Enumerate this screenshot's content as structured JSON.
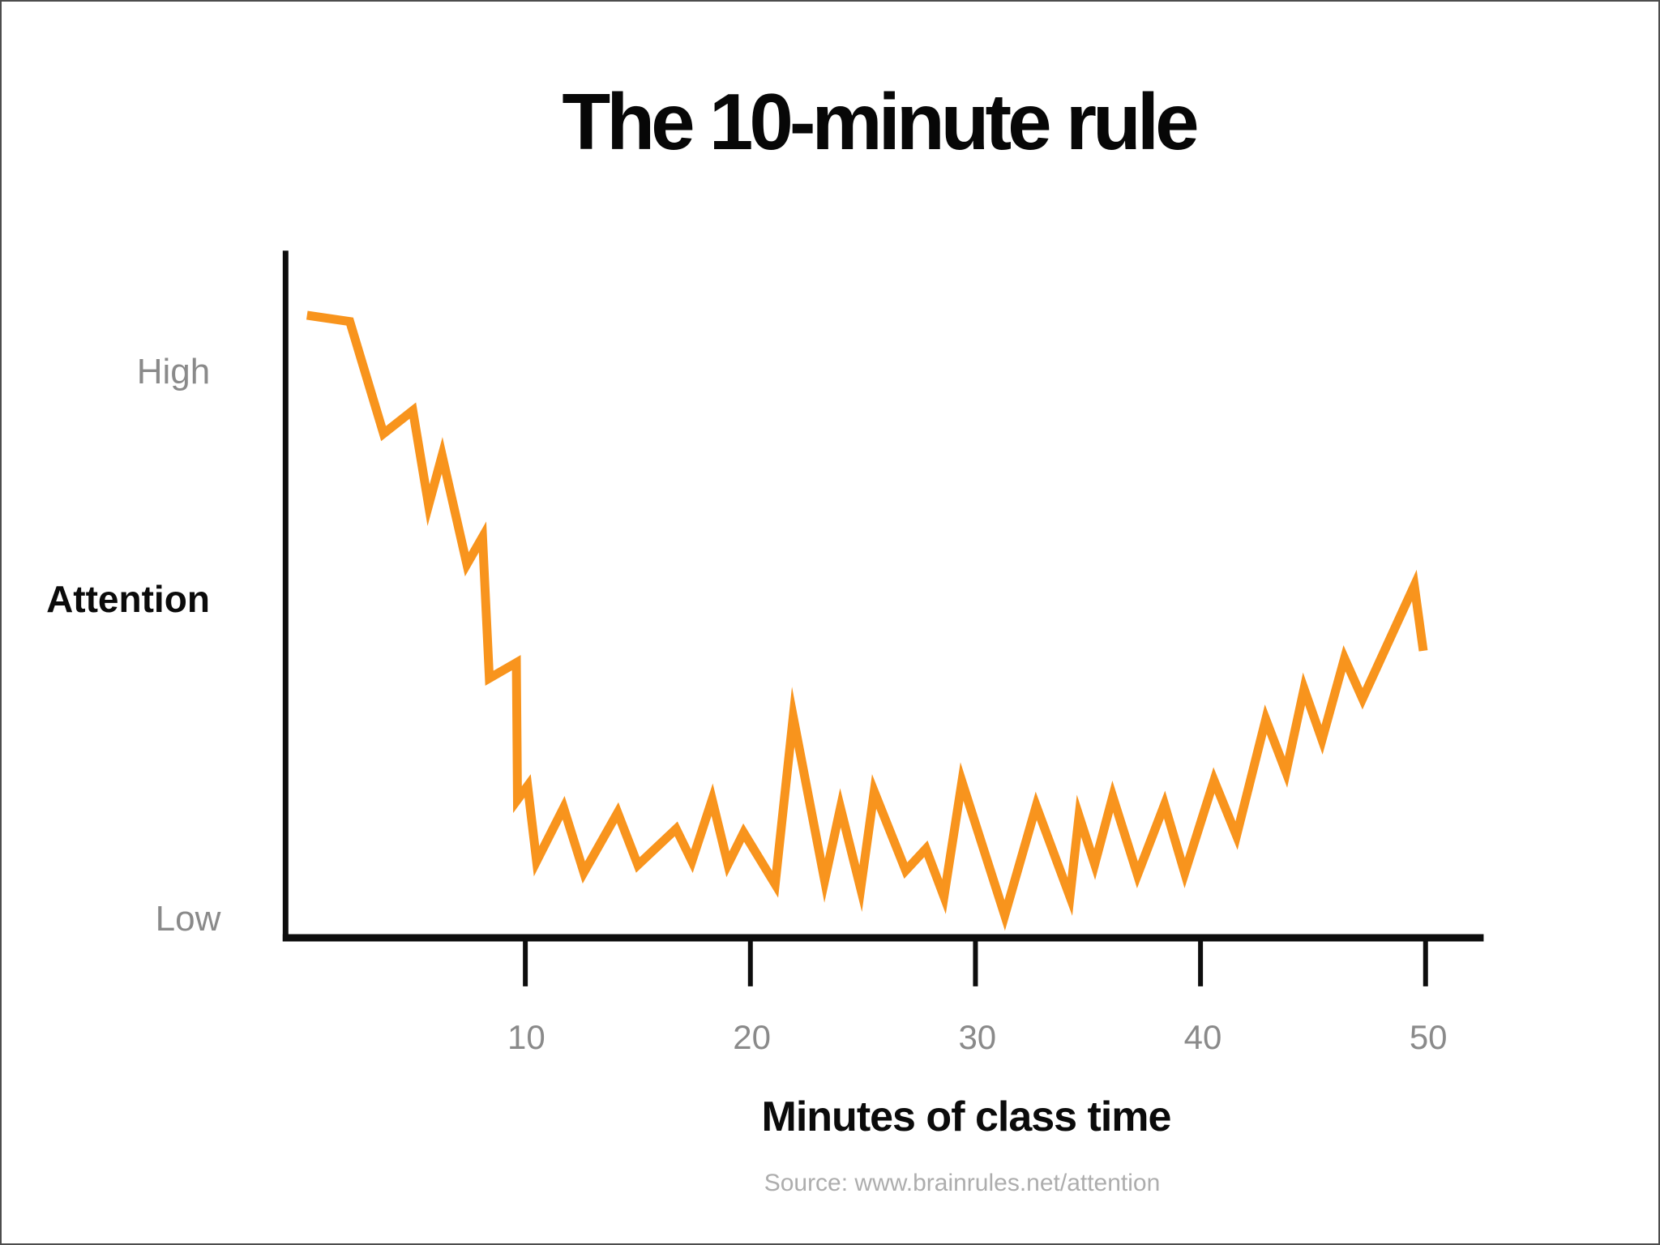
{
  "title": "The 10-minute rule",
  "y_axis": {
    "axis_label": "Attention",
    "top_label": "High",
    "bottom_label": "Low"
  },
  "x_axis": {
    "label": "Minutes of class time",
    "ticks": [
      "10",
      "20",
      "30",
      "40",
      "50"
    ]
  },
  "source": "Source: www.brainrules.net/attention",
  "colors": {
    "line": "#F8941D",
    "axis": "#0d0d0d",
    "muted_label": "#8a8a8a",
    "source_text": "#adadad"
  },
  "chart_data": {
    "type": "line",
    "title": "The 10-minute rule",
    "xlabel": "Minutes of class time",
    "ylabel": "Attention",
    "x_ticks": [
      10,
      20,
      30,
      40,
      50
    ],
    "xlim": [
      0,
      52
    ],
    "y_scale_note": "attention estimated 0-100, 100 = starting level near 'High', 0 = 'Low' baseline",
    "grid": false,
    "legend": "none",
    "series": [
      {
        "name": "Attention",
        "color": "#F8941D",
        "points": [
          [
            0.3,
            100
          ],
          [
            2.2,
            99
          ],
          [
            3.7,
            81
          ],
          [
            5.0,
            84.7
          ],
          [
            5.7,
            69.5
          ],
          [
            6.3,
            77.5
          ],
          [
            7.4,
            60.0
          ],
          [
            8.1,
            64.4
          ],
          [
            8.4,
            41.7
          ],
          [
            9.6,
            44.2
          ],
          [
            9.65,
            22.2
          ],
          [
            10.1,
            24.4
          ],
          [
            10.5,
            12.3
          ],
          [
            11.7,
            20.9
          ],
          [
            12.6,
            10.5
          ],
          [
            14.1,
            20.1
          ],
          [
            15.0,
            11.7
          ],
          [
            16.7,
            17.5
          ],
          [
            17.4,
            12.3
          ],
          [
            18.3,
            22.2
          ],
          [
            19.0,
            11.8
          ],
          [
            19.7,
            16.9
          ],
          [
            21.1,
            8.6
          ],
          [
            21.9,
            35.5
          ],
          [
            23.3,
            9.2
          ],
          [
            24.0,
            20.9
          ],
          [
            24.9,
            7.9
          ],
          [
            25.5,
            23.5
          ],
          [
            26.9,
            10.8
          ],
          [
            27.8,
            14.3
          ],
          [
            28.6,
            6.6
          ],
          [
            29.4,
            25.1
          ],
          [
            31.3,
            3.6
          ],
          [
            32.7,
            21.2
          ],
          [
            34.2,
            6.6
          ],
          [
            34.6,
            19.6
          ],
          [
            35.3,
            11.8
          ],
          [
            36.1,
            22.7
          ],
          [
            37.2,
            10.1
          ],
          [
            38.4,
            21.4
          ],
          [
            39.3,
            10.4
          ],
          [
            40.6,
            25.3
          ],
          [
            41.6,
            16.4
          ],
          [
            42.9,
            35.1
          ],
          [
            43.8,
            26.6
          ],
          [
            44.6,
            40.0
          ],
          [
            45.4,
            31.8
          ],
          [
            46.4,
            44.9
          ],
          [
            47.2,
            38.4
          ],
          [
            49.5,
            56.6
          ],
          [
            49.9,
            46.1
          ]
        ]
      }
    ]
  }
}
